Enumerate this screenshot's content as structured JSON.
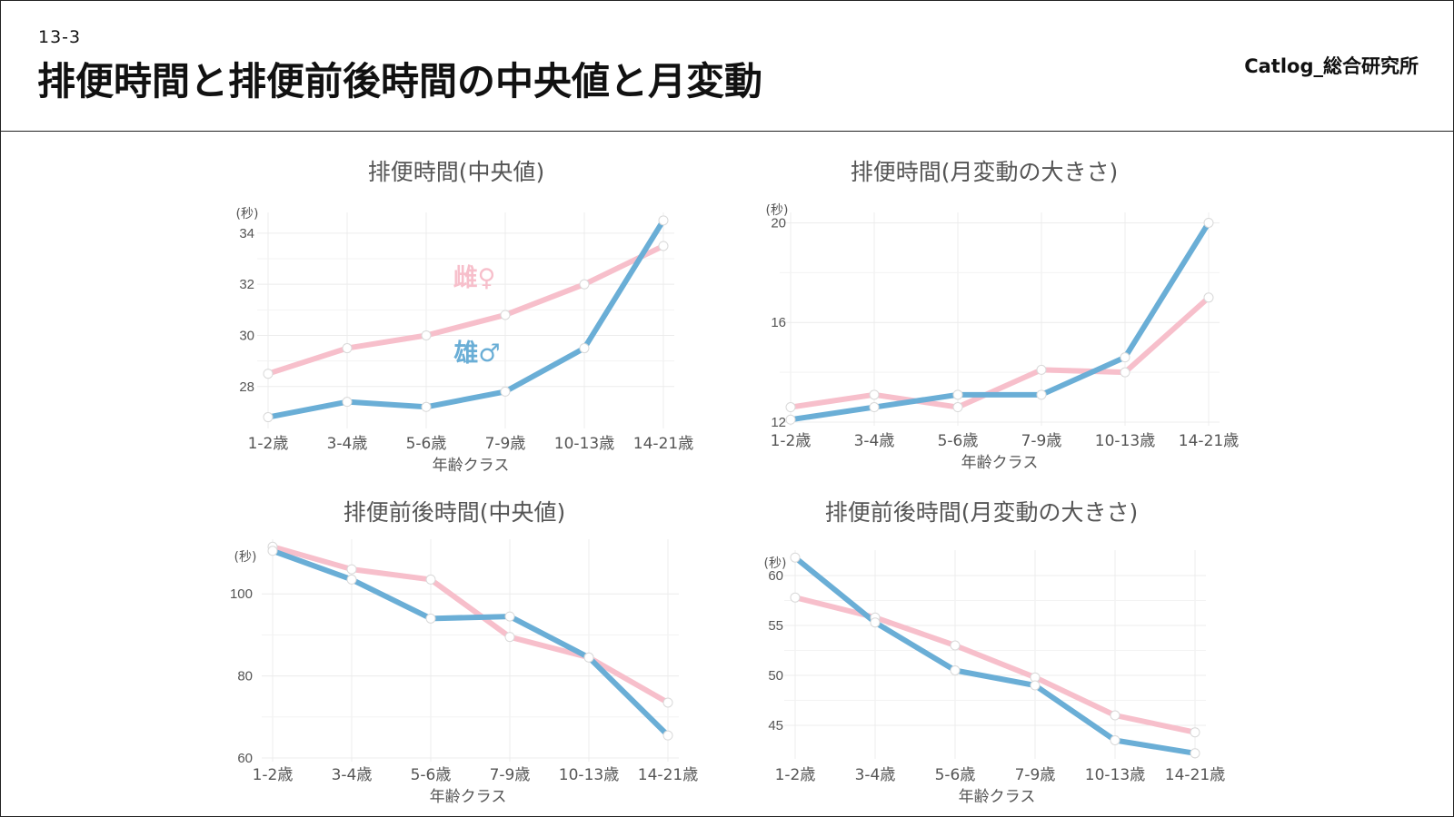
{
  "header": {
    "slide_number": "13-3",
    "title": "排便時間と排便前後時間の中央値と月変動",
    "brand": "Catlog_総合研究所"
  },
  "colors": {
    "male": "#6aaed6",
    "female": "#f7bfcb",
    "grid": "#ececec",
    "axis_text": "#555555"
  },
  "chart_data": [
    {
      "type": "line",
      "title": "排便時間(中央値)",
      "xlabel": "年齢クラス",
      "ylabel": "(秒)",
      "categories": [
        "1-2歳",
        "3-4歳",
        "5-6歳",
        "7-9歳",
        "10-13歳",
        "14-21歳"
      ],
      "yticks": [
        28,
        30,
        32,
        34
      ],
      "ylim": [
        26.5,
        34.6
      ],
      "series": [
        {
          "name": "雌♀",
          "key": "female",
          "values": [
            28.5,
            29.5,
            30.0,
            30.8,
            32.0,
            33.5
          ]
        },
        {
          "name": "雄♂",
          "key": "male",
          "values": [
            26.8,
            27.4,
            27.2,
            27.8,
            29.5,
            34.5
          ]
        }
      ],
      "grid": true
    },
    {
      "type": "line",
      "title": "排便時間(月変動の大きさ)",
      "xlabel": "年齢クラス",
      "ylabel": "(秒)",
      "categories": [
        "1-2歳",
        "3-4歳",
        "5-6歳",
        "7-9歳",
        "10-13歳",
        "14-21歳"
      ],
      "yticks": [
        12,
        16,
        20
      ],
      "ylim": [
        12,
        20.2
      ],
      "series": [
        {
          "key": "female",
          "values": [
            12.6,
            13.1,
            12.6,
            14.1,
            14.0,
            17.0
          ]
        },
        {
          "key": "male",
          "values": [
            12.1,
            12.6,
            13.1,
            13.1,
            14.6,
            20.0
          ]
        }
      ],
      "grid": true
    },
    {
      "type": "line",
      "title": "排便前後時間(中央値)",
      "xlabel": "年齢クラス",
      "ylabel": "(秒)",
      "categories": [
        "1-2歳",
        "3-4歳",
        "5-6歳",
        "7-9歳",
        "10-13歳",
        "14-21歳"
      ],
      "yticks": [
        60,
        80,
        100
      ],
      "ylim": [
        60,
        112
      ],
      "series": [
        {
          "key": "female",
          "values": [
            111.5,
            106.0,
            103.5,
            89.5,
            84.5,
            73.5
          ]
        },
        {
          "key": "male",
          "values": [
            110.5,
            103.5,
            94.0,
            94.5,
            84.5,
            65.5
          ]
        }
      ],
      "grid": true
    },
    {
      "type": "line",
      "title": "排便前後時間(月変動の大きさ)",
      "xlabel": "年齢クラス",
      "ylabel": "(秒)",
      "categories": [
        "1-2歳",
        "3-4歳",
        "5-6歳",
        "7-9歳",
        "10-13歳",
        "14-21歳"
      ],
      "yticks": [
        45,
        50,
        55,
        60
      ],
      "ylim": [
        42,
        62
      ],
      "series": [
        {
          "key": "female",
          "values": [
            57.8,
            55.8,
            53.0,
            49.8,
            46.0,
            44.3
          ]
        },
        {
          "key": "male",
          "values": [
            61.8,
            55.3,
            50.5,
            49.0,
            43.5,
            42.2
          ]
        }
      ],
      "grid": true
    }
  ]
}
